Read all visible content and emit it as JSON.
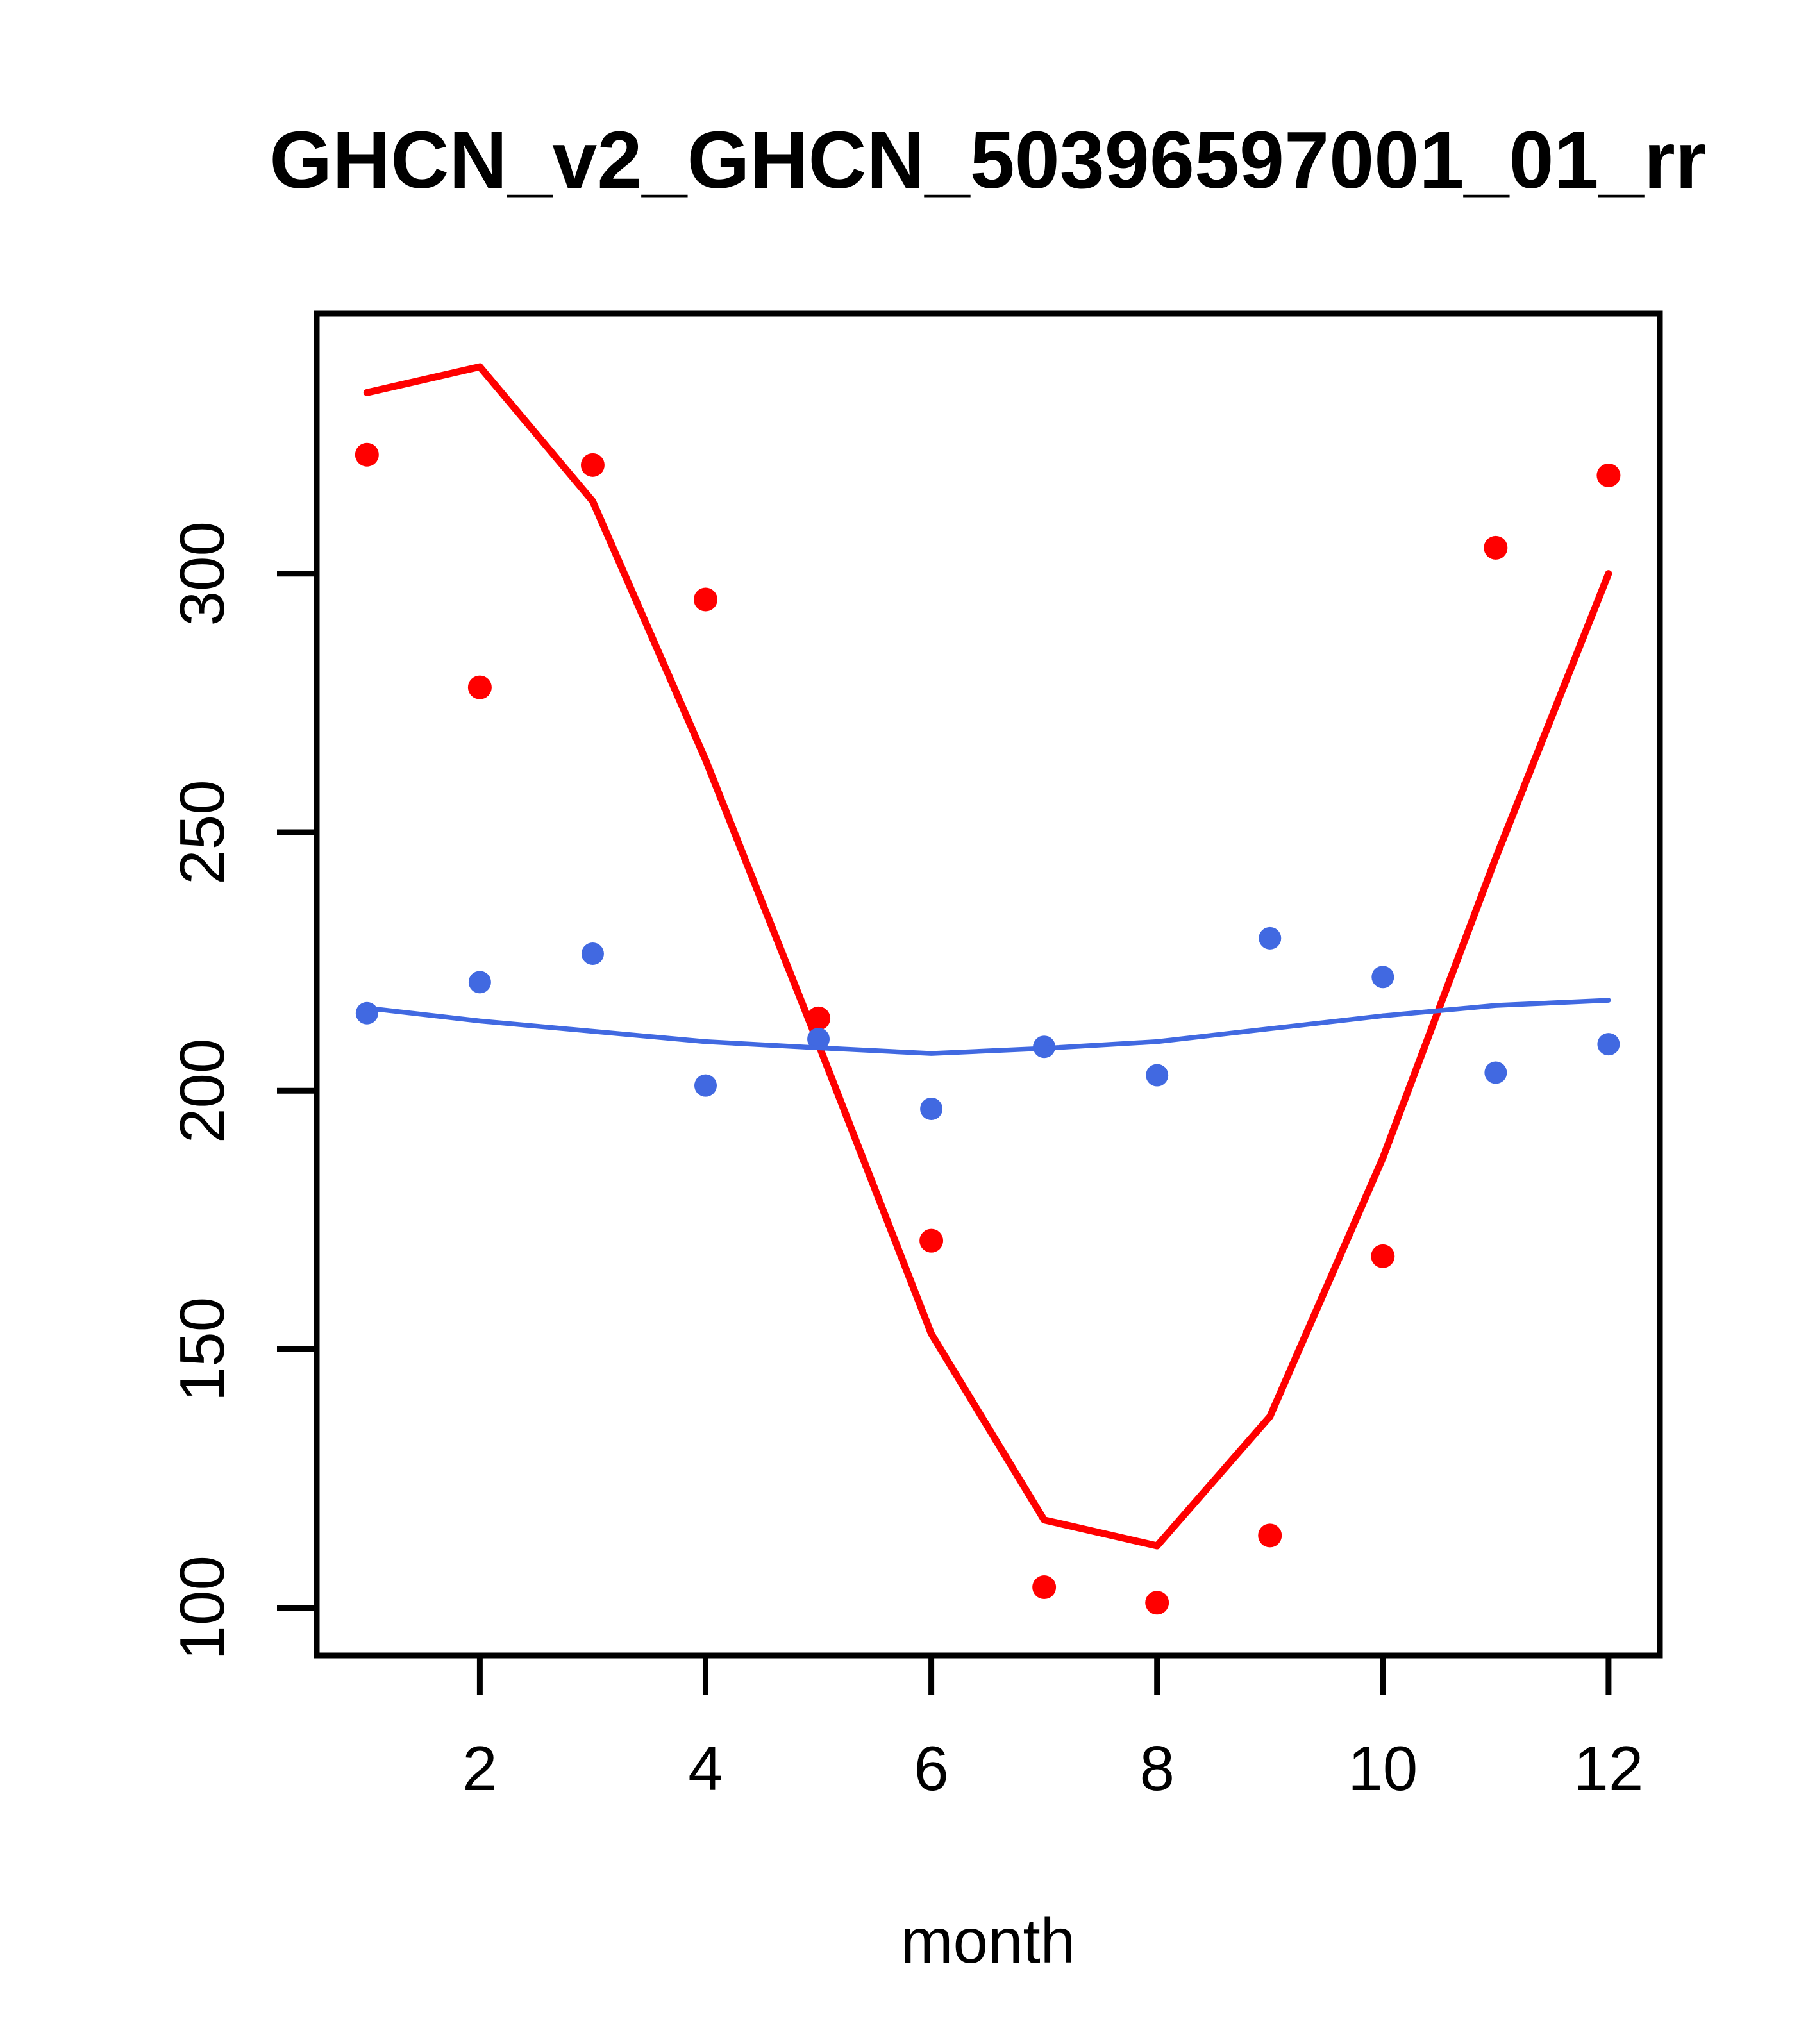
{
  "title": "GHCN_v2_GHCN_50396597001_01_rr",
  "chart_data": {
    "type": "scatter",
    "title": "GHCN_v2_GHCN_50396597001_01_rr",
    "xlabel": "month",
    "ylabel": "",
    "x": [
      1,
      2,
      3,
      4,
      5,
      6,
      7,
      8,
      9,
      10,
      11,
      12
    ],
    "xticks": [
      2,
      4,
      6,
      8,
      10,
      12
    ],
    "yticks": [
      100,
      150,
      200,
      250,
      300
    ],
    "xlim": [
      0.555,
      12.455
    ],
    "ylim": [
      90.8,
      350.3
    ],
    "grid": false,
    "legend": "none",
    "series": [
      {
        "name": "red-points",
        "type": "scatter",
        "color": "#FF0000",
        "marker": "filled-circle",
        "values": [
          323,
          278,
          321,
          295,
          214,
          171,
          104,
          101,
          114,
          168,
          305,
          319
        ]
      },
      {
        "name": "red-line",
        "type": "line",
        "color": "#FF0000",
        "values": [
          335,
          340,
          314,
          264,
          209,
          153,
          117,
          112,
          137,
          187,
          245,
          300
        ]
      },
      {
        "name": "blue-points",
        "type": "scatter",
        "color": "#4169E1",
        "marker": "filled-circle",
        "values": [
          215,
          221,
          226.5,
          201,
          210,
          196.5,
          208.5,
          203,
          229.5,
          222,
          203.5,
          209
        ]
      },
      {
        "name": "blue-line",
        "type": "line",
        "color": "#4169E1",
        "values": [
          216,
          213.5,
          211.5,
          209.5,
          208.3,
          207.2,
          208.2,
          209.5,
          212,
          214.5,
          216.5,
          217.5
        ]
      }
    ],
    "colors": {
      "red_series": "#FF0000",
      "blue_series": "#4169E1",
      "axis": "#000000",
      "background": "#FFFFFF"
    }
  }
}
